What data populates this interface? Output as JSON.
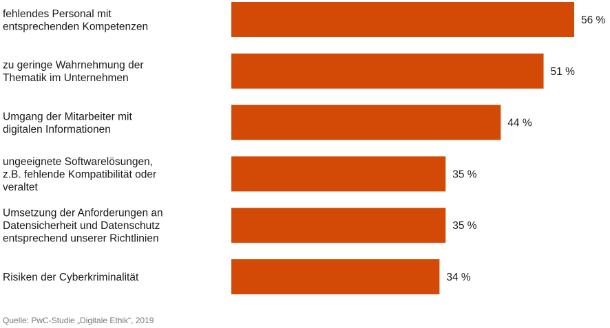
{
  "chart_data": {
    "type": "bar",
    "orientation": "horizontal",
    "categories": [
      [
        "fehlendes Personal mit",
        "entsprechenden Kompetenzen"
      ],
      [
        "zu geringe Wahrnehmung der",
        "Thematik im Unternehmen"
      ],
      [
        "Umgang der Mitarbeiter mit",
        "digitalen Informationen"
      ],
      [
        "ungeeignete Softwarelösungen,",
        "z.B. fehlende Kompatibilität oder",
        "veraltet"
      ],
      [
        "Umsetzung der Anforderungen an",
        "Datensicherheit und Datenschutz",
        "entsprechend unserer Richtlinien"
      ],
      [
        "Risiken der Cyberkriminalität"
      ]
    ],
    "values": [
      56,
      51,
      44,
      35,
      35,
      34
    ],
    "value_labels": [
      "56 %",
      "51 %",
      "44 %",
      "35 %",
      "35 %",
      "34 %"
    ],
    "unit": "%",
    "bar_color": "#d24a05",
    "grid": false,
    "legend": "none"
  },
  "source": "Quelle: PwC-Studie „Digitale Ethik“, 2019"
}
